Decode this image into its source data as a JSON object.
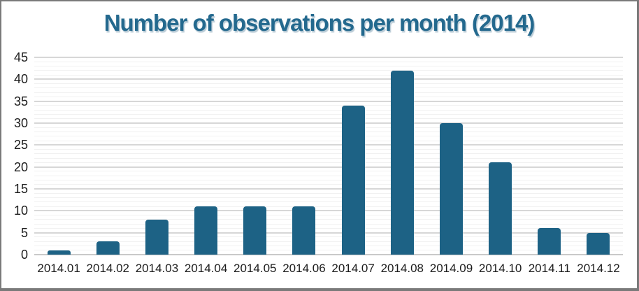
{
  "window": {
    "background_color": "#ffffff",
    "border_color": "#7a7a7a"
  },
  "chart_data": {
    "type": "bar",
    "title": "Number of observations per month (2014)",
    "categories": [
      "2014.01",
      "2014.02",
      "2014.03",
      "2014.04",
      "2014.05",
      "2014.06",
      "2014.07",
      "2014.08",
      "2014.09",
      "2014.10",
      "2014.11",
      "2014.12"
    ],
    "values": [
      1,
      3,
      8,
      11,
      11,
      11,
      34,
      42,
      30,
      21,
      6,
      5
    ],
    "xlabel": "",
    "ylabel": "",
    "ylim": [
      0,
      45
    ],
    "y_ticks": [
      0,
      5,
      10,
      15,
      20,
      25,
      30,
      35,
      40,
      45
    ],
    "y_tick_interval": 5,
    "minor_grid_interval": 1,
    "grid": true,
    "legend": false,
    "legend_position": "none",
    "bar_color": "#1d6285",
    "title_color": "#24698e",
    "axis_text_color": "#1c1c1c",
    "major_grid_color": "#d7d7d7",
    "minor_grid_color": "#f1f1f1",
    "baseline_color": "#c9c9c9"
  }
}
